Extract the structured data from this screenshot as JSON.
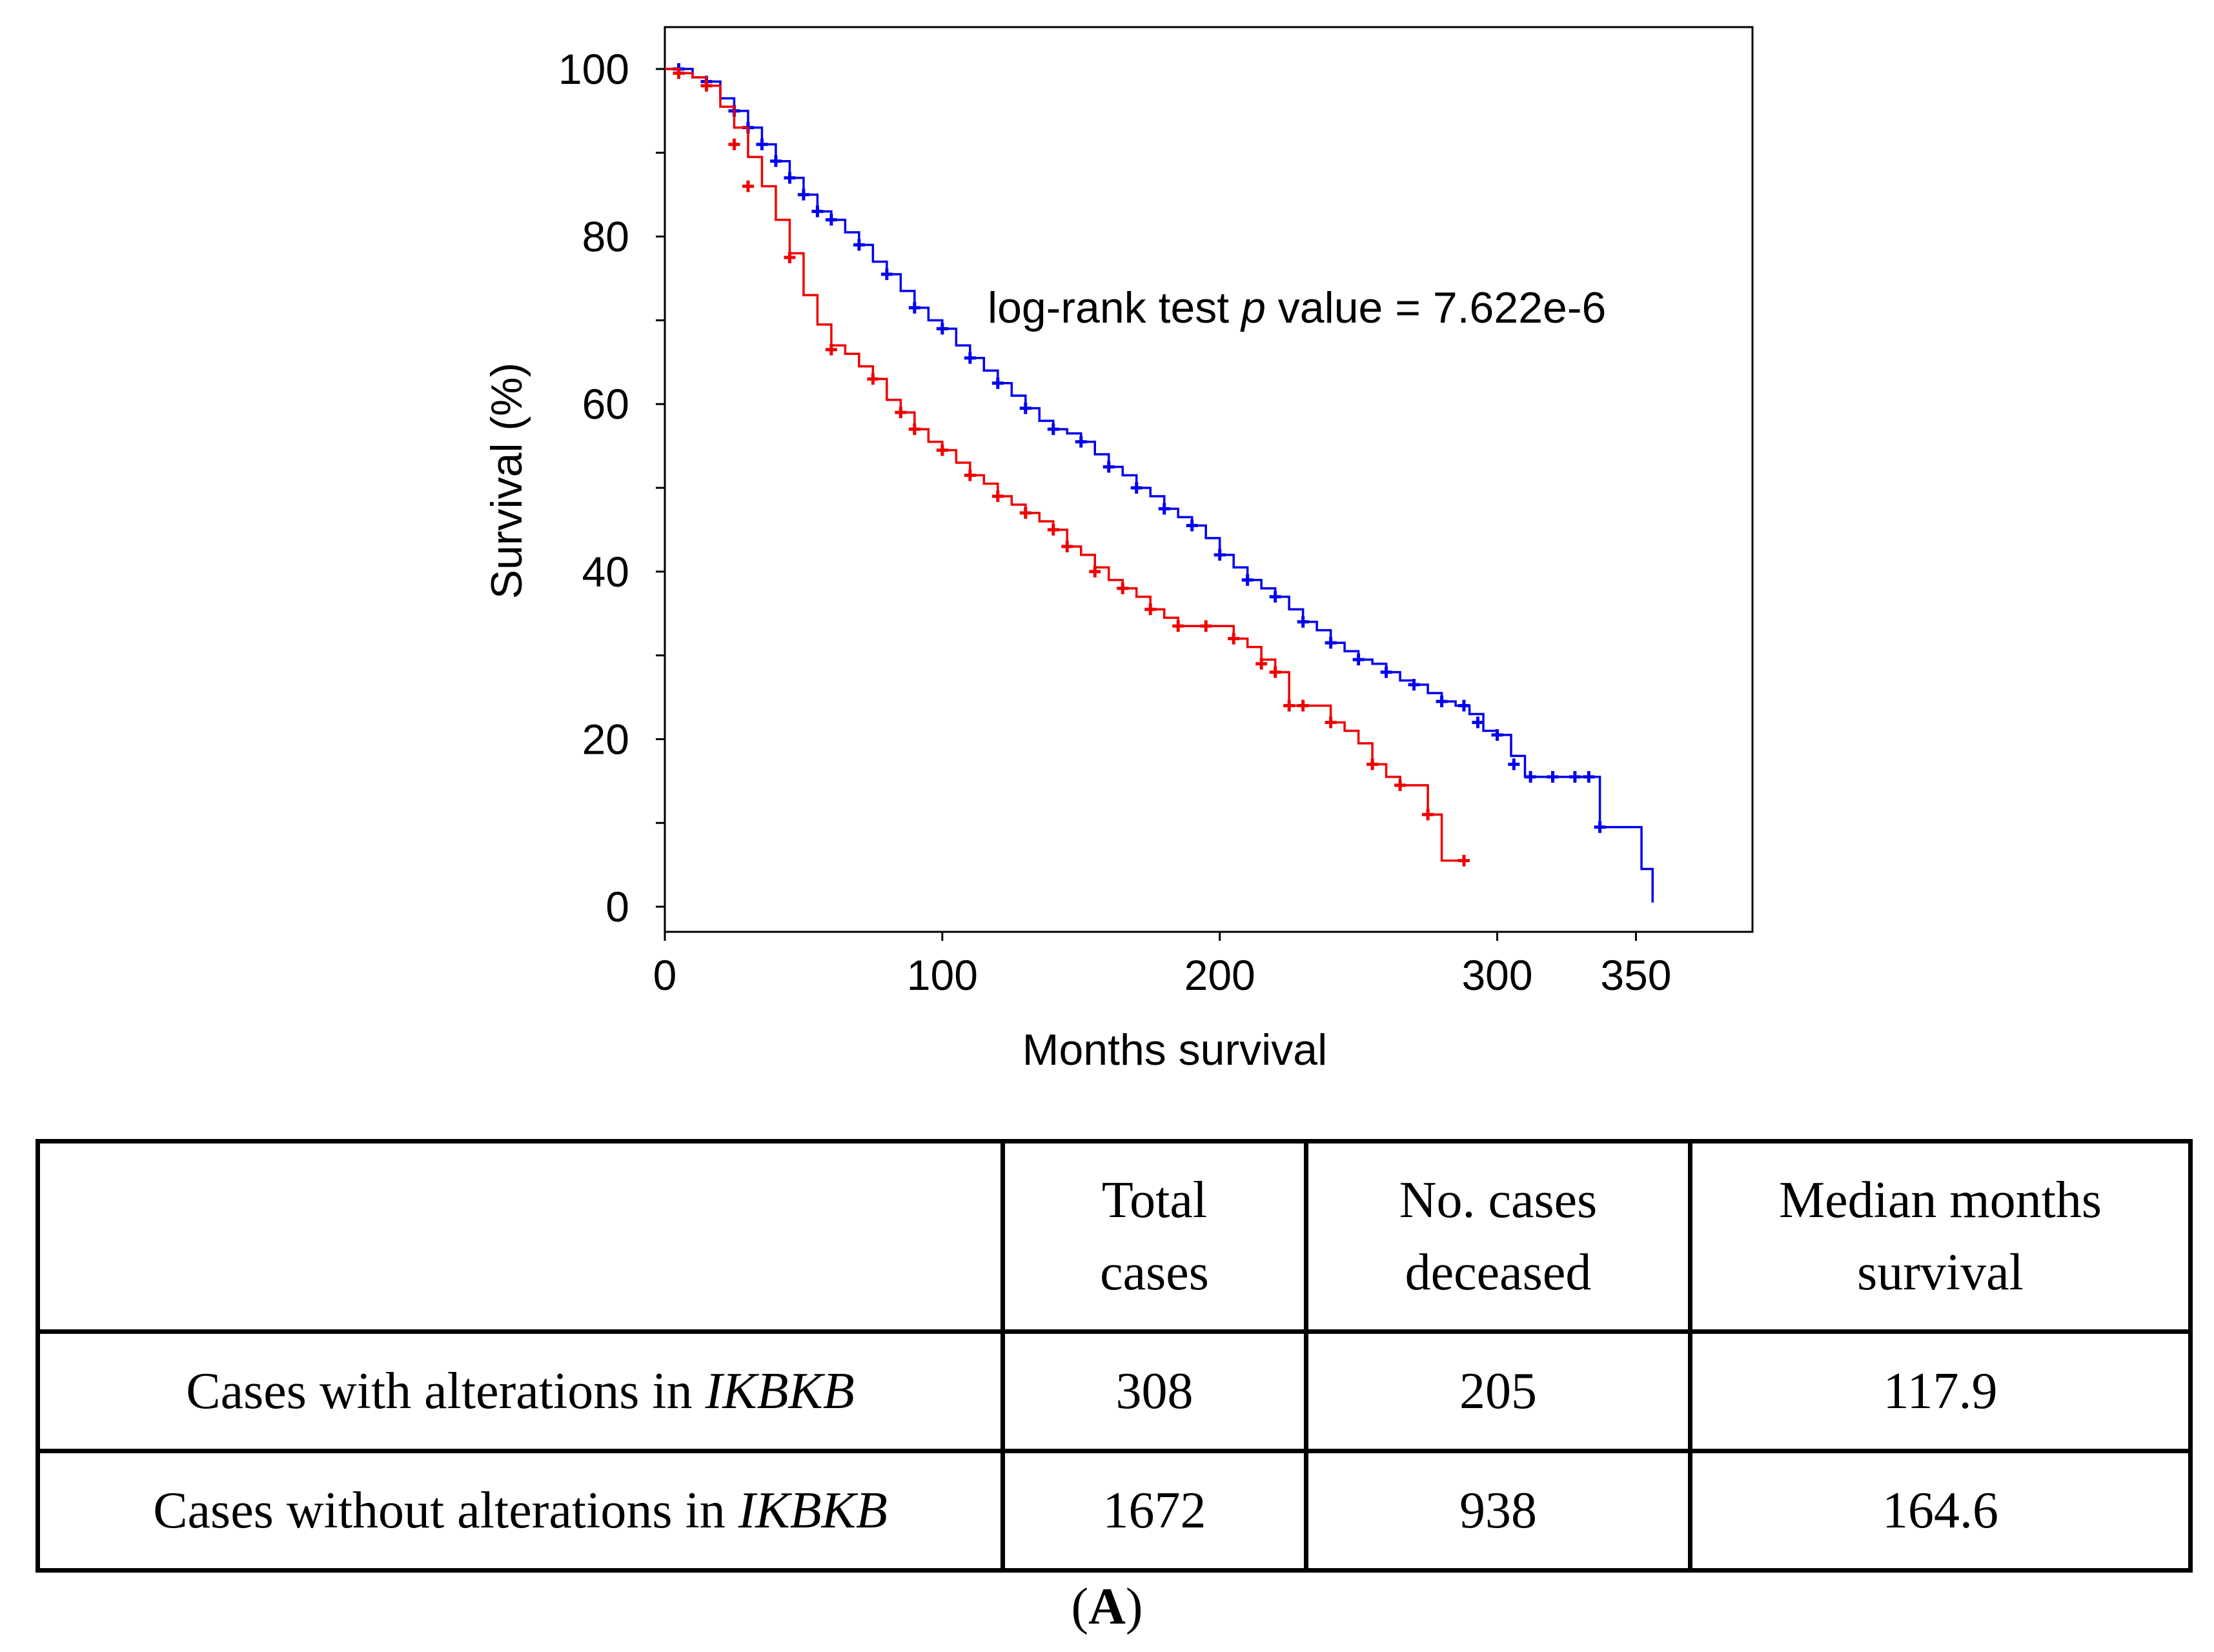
{
  "chart_data": {
    "type": "line",
    "subtype": "kaplan-meier",
    "xlabel": "Months survival",
    "ylabel": "Survival (%)",
    "xticks": [
      0,
      100,
      200,
      300,
      350
    ],
    "yticks": [
      0,
      20,
      40,
      60,
      80,
      100
    ],
    "xlim": [
      0,
      392
    ],
    "ylim": [
      -3,
      105
    ],
    "annotation": {
      "prefix": "log-rank test ",
      "p": "p",
      "suffix": " value = 7.622e-6"
    },
    "grid": false,
    "legend": "none",
    "series": [
      {
        "color": "#0000ee",
        "points": [
          [
            0,
            100
          ],
          [
            5,
            100
          ],
          [
            10,
            99
          ],
          [
            15,
            98.5
          ],
          [
            20,
            96.5
          ],
          [
            25,
            95
          ],
          [
            30,
            93
          ],
          [
            35,
            91
          ],
          [
            40,
            89
          ],
          [
            45,
            87
          ],
          [
            50,
            85
          ],
          [
            55,
            83
          ],
          [
            60,
            82
          ],
          [
            65,
            80.5
          ],
          [
            70,
            79
          ],
          [
            75,
            77
          ],
          [
            80,
            75.5
          ],
          [
            85,
            73.5
          ],
          [
            90,
            71.5
          ],
          [
            95,
            70
          ],
          [
            100,
            69
          ],
          [
            105,
            67
          ],
          [
            110,
            65.5
          ],
          [
            115,
            64
          ],
          [
            120,
            62.5
          ],
          [
            125,
            61
          ],
          [
            130,
            59.5
          ],
          [
            135,
            58
          ],
          [
            140,
            57
          ],
          [
            145,
            56.5
          ],
          [
            150,
            55.5
          ],
          [
            155,
            54
          ],
          [
            160,
            52.5
          ],
          [
            165,
            51.5
          ],
          [
            170,
            50
          ],
          [
            175,
            49
          ],
          [
            180,
            47.5
          ],
          [
            185,
            46.5
          ],
          [
            190,
            45.5
          ],
          [
            195,
            44
          ],
          [
            200,
            42
          ],
          [
            205,
            40.5
          ],
          [
            210,
            39
          ],
          [
            215,
            38
          ],
          [
            220,
            37
          ],
          [
            225,
            35.5
          ],
          [
            230,
            34
          ],
          [
            235,
            33
          ],
          [
            240,
            31.5
          ],
          [
            245,
            30.5
          ],
          [
            250,
            29.5
          ],
          [
            255,
            29
          ],
          [
            260,
            28
          ],
          [
            265,
            27
          ],
          [
            270,
            26.5
          ],
          [
            275,
            25.5
          ],
          [
            280,
            24.5
          ],
          [
            285,
            24
          ],
          [
            290,
            23
          ],
          [
            295,
            21
          ],
          [
            300,
            20.5
          ],
          [
            305,
            18
          ],
          [
            310,
            15.5
          ],
          [
            320,
            15.5
          ],
          [
            335,
            15.5
          ],
          [
            337,
            9.5
          ],
          [
            352,
            9.5
          ],
          [
            352,
            4.5
          ],
          [
            356,
            4.5
          ],
          [
            356,
            0.5
          ]
        ],
        "censor": [
          [
            5,
            100
          ],
          [
            15,
            98.5
          ],
          [
            25,
            95
          ],
          [
            30,
            93
          ],
          [
            35,
            91
          ],
          [
            40,
            89
          ],
          [
            45,
            87
          ],
          [
            50,
            85
          ],
          [
            55,
            83
          ],
          [
            60,
            82
          ],
          [
            70,
            79
          ],
          [
            80,
            75.5
          ],
          [
            90,
            71.5
          ],
          [
            100,
            69
          ],
          [
            110,
            65.5
          ],
          [
            120,
            62.5
          ],
          [
            130,
            59.5
          ],
          [
            140,
            57
          ],
          [
            150,
            55.5
          ],
          [
            160,
            52.5
          ],
          [
            170,
            50
          ],
          [
            180,
            47.5
          ],
          [
            190,
            45.5
          ],
          [
            200,
            42
          ],
          [
            210,
            39
          ],
          [
            220,
            37
          ],
          [
            230,
            34
          ],
          [
            240,
            31.5
          ],
          [
            250,
            29.5
          ],
          [
            260,
            28
          ],
          [
            270,
            26.5
          ],
          [
            280,
            24.5
          ],
          [
            288,
            24
          ],
          [
            293,
            22
          ],
          [
            300,
            20.5
          ],
          [
            306,
            17
          ],
          [
            312,
            15.5
          ],
          [
            320,
            15.5
          ],
          [
            328,
            15.5
          ],
          [
            333,
            15.5
          ],
          [
            337,
            9.5
          ]
        ]
      },
      {
        "color": "#ee0000",
        "points": [
          [
            0,
            100
          ],
          [
            5,
            99.5
          ],
          [
            10,
            99
          ],
          [
            15,
            98
          ],
          [
            20,
            95.5
          ],
          [
            25,
            93
          ],
          [
            30,
            89.5
          ],
          [
            35,
            86
          ],
          [
            40,
            82
          ],
          [
            45,
            78
          ],
          [
            50,
            73
          ],
          [
            55,
            69.5
          ],
          [
            60,
            67
          ],
          [
            65,
            66
          ],
          [
            70,
            64.5
          ],
          [
            75,
            63
          ],
          [
            80,
            60.5
          ],
          [
            85,
            59
          ],
          [
            90,
            57
          ],
          [
            95,
            55.5
          ],
          [
            100,
            54.5
          ],
          [
            105,
            53
          ],
          [
            110,
            51.5
          ],
          [
            115,
            50.5
          ],
          [
            120,
            49
          ],
          [
            125,
            48
          ],
          [
            130,
            47
          ],
          [
            135,
            46
          ],
          [
            140,
            45
          ],
          [
            145,
            43
          ],
          [
            150,
            42
          ],
          [
            155,
            40.5
          ],
          [
            160,
            39
          ],
          [
            165,
            38
          ],
          [
            170,
            37
          ],
          [
            175,
            35.5
          ],
          [
            180,
            34.5
          ],
          [
            185,
            33.5
          ],
          [
            190,
            33.5
          ],
          [
            195,
            33.5
          ],
          [
            200,
            33.5
          ],
          [
            205,
            32
          ],
          [
            210,
            31
          ],
          [
            215,
            29.5
          ],
          [
            220,
            28
          ],
          [
            225,
            24
          ],
          [
            230,
            24
          ],
          [
            235,
            24
          ],
          [
            240,
            22
          ],
          [
            245,
            21
          ],
          [
            250,
            19.5
          ],
          [
            255,
            17
          ],
          [
            260,
            15.5
          ],
          [
            265,
            14.5
          ],
          [
            270,
            14.5
          ],
          [
            275,
            11
          ],
          [
            280,
            11
          ],
          [
            280,
            5.5
          ],
          [
            288,
            5.5
          ]
        ],
        "censor": [
          [
            5,
            99.5
          ],
          [
            15,
            98
          ],
          [
            25,
            91
          ],
          [
            30,
            86
          ],
          [
            45,
            77.5
          ],
          [
            60,
            66.5
          ],
          [
            75,
            63
          ],
          [
            85,
            59
          ],
          [
            90,
            57
          ],
          [
            100,
            54.5
          ],
          [
            110,
            51.5
          ],
          [
            120,
            49
          ],
          [
            130,
            47
          ],
          [
            140,
            45
          ],
          [
            145,
            43
          ],
          [
            155,
            40
          ],
          [
            165,
            38
          ],
          [
            175,
            35.5
          ],
          [
            185,
            33.5
          ],
          [
            195,
            33.5
          ],
          [
            205,
            32
          ],
          [
            215,
            29
          ],
          [
            220,
            28
          ],
          [
            225,
            24
          ],
          [
            230,
            24
          ],
          [
            240,
            22
          ],
          [
            255,
            17
          ],
          [
            265,
            14.5
          ],
          [
            275,
            11
          ],
          [
            288,
            5.5
          ]
        ]
      }
    ]
  },
  "table": {
    "headers": [
      "",
      "Total\ncases",
      "No. cases\ndeceased",
      "Median months\nsurvival"
    ],
    "rows": [
      {
        "label": "Cases with alterations in ",
        "gene": "IKBKB",
        "total": "308",
        "deceased": "205",
        "median": "117.9"
      },
      {
        "label": "Cases without alterations in ",
        "gene": "IKBKB",
        "total": "1672",
        "deceased": "938",
        "median": "164.6"
      }
    ]
  },
  "panel_label": {
    "open": "(",
    "letter": "A",
    "close": ")"
  }
}
